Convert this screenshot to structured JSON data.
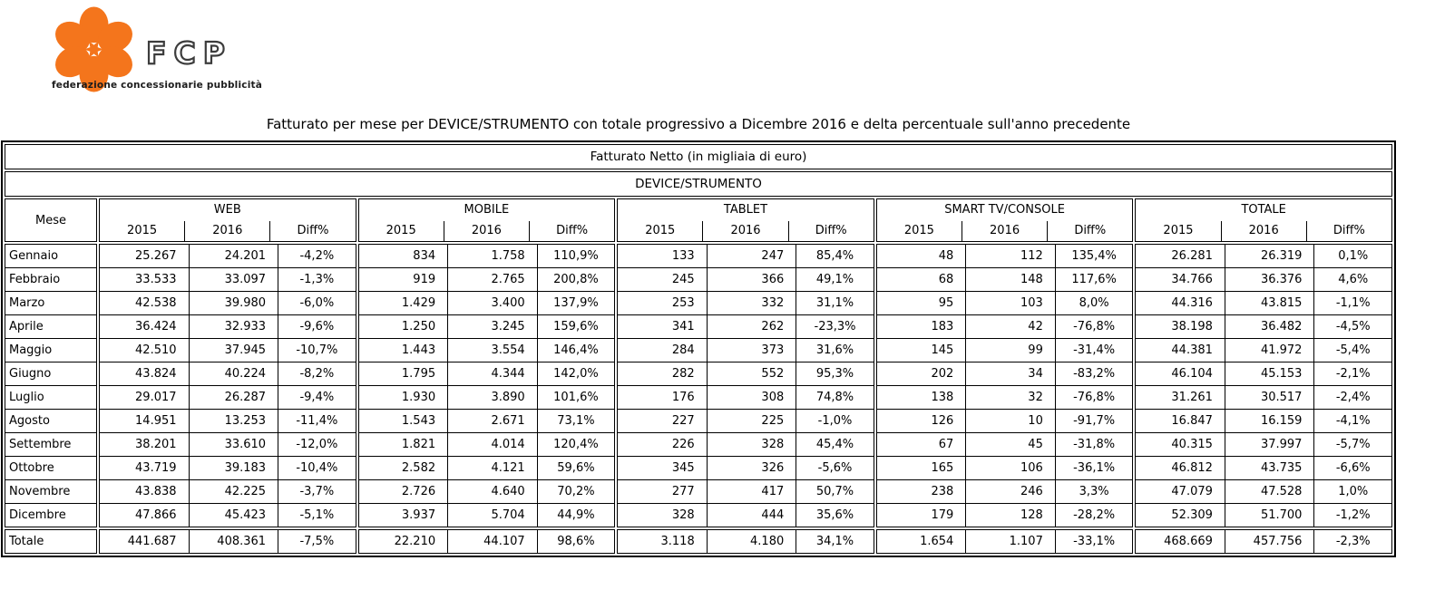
{
  "logo": {
    "brand": "FCP",
    "subtitle": "federazione concessionarie pubblicità",
    "flower_color": "#F4751C",
    "brand_color": "#3c3c3c"
  },
  "title": "Fatturato per mese per DEVICE/STRUMENTO con totale progressivo a Dicembre 2016 e delta percentuale sull'anno precedente",
  "table": {
    "band1": "Fatturato Netto (in migliaia di euro)",
    "band2": "DEVICE/STRUMENTO",
    "mese_header": "Mese",
    "groups": [
      "WEB",
      "MOBILE",
      "TABLET",
      "SMART TV/CONSOLE",
      "TOTALE"
    ],
    "sub_headers": [
      "2015",
      "2016",
      "Diff%"
    ],
    "rows": [
      {
        "mese": "Gennaio",
        "cells": [
          "25.267",
          "24.201",
          "-4,2%",
          "834",
          "1.758",
          "110,9%",
          "133",
          "247",
          "85,4%",
          "48",
          "112",
          "135,4%",
          "26.281",
          "26.319",
          "0,1%"
        ]
      },
      {
        "mese": "Febbraio",
        "cells": [
          "33.533",
          "33.097",
          "-1,3%",
          "919",
          "2.765",
          "200,8%",
          "245",
          "366",
          "49,1%",
          "68",
          "148",
          "117,6%",
          "34.766",
          "36.376",
          "4,6%"
        ]
      },
      {
        "mese": "Marzo",
        "cells": [
          "42.538",
          "39.980",
          "-6,0%",
          "1.429",
          "3.400",
          "137,9%",
          "253",
          "332",
          "31,1%",
          "95",
          "103",
          "8,0%",
          "44.316",
          "43.815",
          "-1,1%"
        ]
      },
      {
        "mese": "Aprile",
        "cells": [
          "36.424",
          "32.933",
          "-9,6%",
          "1.250",
          "3.245",
          "159,6%",
          "341",
          "262",
          "-23,3%",
          "183",
          "42",
          "-76,8%",
          "38.198",
          "36.482",
          "-4,5%"
        ]
      },
      {
        "mese": "Maggio",
        "cells": [
          "42.510",
          "37.945",
          "-10,7%",
          "1.443",
          "3.554",
          "146,4%",
          "284",
          "373",
          "31,6%",
          "145",
          "99",
          "-31,4%",
          "44.381",
          "41.972",
          "-5,4%"
        ]
      },
      {
        "mese": "Giugno",
        "cells": [
          "43.824",
          "40.224",
          "-8,2%",
          "1.795",
          "4.344",
          "142,0%",
          "282",
          "552",
          "95,3%",
          "202",
          "34",
          "-83,2%",
          "46.104",
          "45.153",
          "-2,1%"
        ]
      },
      {
        "mese": "Luglio",
        "cells": [
          "29.017",
          "26.287",
          "-9,4%",
          "1.930",
          "3.890",
          "101,6%",
          "176",
          "308",
          "74,8%",
          "138",
          "32",
          "-76,8%",
          "31.261",
          "30.517",
          "-2,4%"
        ]
      },
      {
        "mese": "Agosto",
        "cells": [
          "14.951",
          "13.253",
          "-11,4%",
          "1.543",
          "2.671",
          "73,1%",
          "227",
          "225",
          "-1,0%",
          "126",
          "10",
          "-91,7%",
          "16.847",
          "16.159",
          "-4,1%"
        ]
      },
      {
        "mese": "Settembre",
        "cells": [
          "38.201",
          "33.610",
          "-12,0%",
          "1.821",
          "4.014",
          "120,4%",
          "226",
          "328",
          "45,4%",
          "67",
          "45",
          "-31,8%",
          "40.315",
          "37.997",
          "-5,7%"
        ]
      },
      {
        "mese": "Ottobre",
        "cells": [
          "43.719",
          "39.183",
          "-10,4%",
          "2.582",
          "4.121",
          "59,6%",
          "345",
          "326",
          "-5,6%",
          "165",
          "106",
          "-36,1%",
          "46.812",
          "43.735",
          "-6,6%"
        ]
      },
      {
        "mese": "Novembre",
        "cells": [
          "43.838",
          "42.225",
          "-3,7%",
          "2.726",
          "4.640",
          "70,2%",
          "277",
          "417",
          "50,7%",
          "238",
          "246",
          "3,3%",
          "47.079",
          "47.528",
          "1,0%"
        ]
      },
      {
        "mese": "Dicembre",
        "cells": [
          "47.866",
          "45.423",
          "-5,1%",
          "3.937",
          "5.704",
          "44,9%",
          "328",
          "444",
          "35,6%",
          "179",
          "128",
          "-28,2%",
          "52.309",
          "51.700",
          "-1,2%"
        ]
      }
    ],
    "total_row": {
      "mese": "Totale",
      "cells": [
        "441.687",
        "408.361",
        "-7,5%",
        "22.210",
        "44.107",
        "98,6%",
        "3.118",
        "4.180",
        "34,1%",
        "1.654",
        "1.107",
        "-33,1%",
        "468.669",
        "457.756",
        "-2,3%"
      ]
    }
  }
}
